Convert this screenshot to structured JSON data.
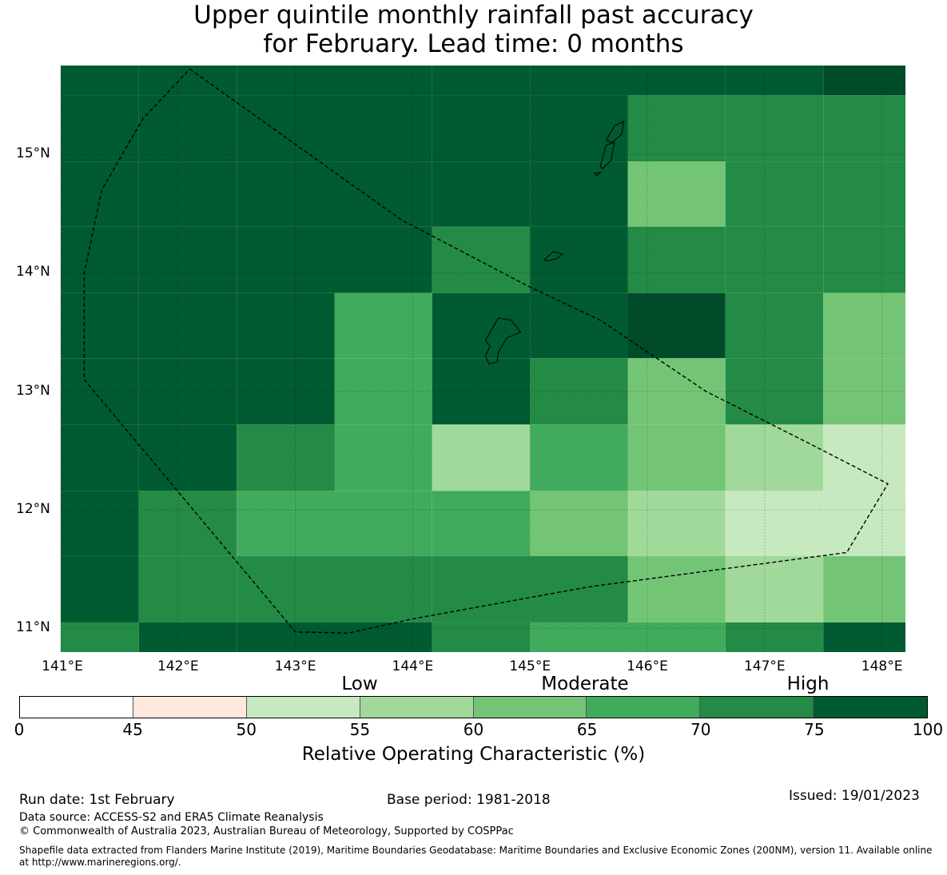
{
  "title": {
    "line1": "Upper quintile monthly rainfall past accuracy",
    "line2": "for February. Lead time: 0 months"
  },
  "map": {
    "lon_range": [
      141.0,
      148.2
    ],
    "lat_range": [
      10.8,
      15.75
    ],
    "x_ticks": [
      {
        "lon": 141,
        "label": "141°E"
      },
      {
        "lon": 142,
        "label": "142°E"
      },
      {
        "lon": 143,
        "label": "143°E"
      },
      {
        "lon": 144,
        "label": "144°E"
      },
      {
        "lon": 145,
        "label": "145°E"
      },
      {
        "lon": 146,
        "label": "146°E"
      },
      {
        "lon": 147,
        "label": "147°E"
      },
      {
        "lon": 148,
        "label": "148°E"
      }
    ],
    "y_ticks": [
      {
        "lat": 15,
        "label": "15°N"
      },
      {
        "lat": 14,
        "label": "14°N"
      },
      {
        "lat": 13,
        "label": "13°N"
      },
      {
        "lat": 12,
        "label": "12°N"
      },
      {
        "lat": 11,
        "label": "11°N"
      }
    ],
    "grid_lon_edges": [
      140.8,
      141.666,
      142.5,
      143.333,
      144.166,
      145.0,
      145.833,
      146.666,
      147.5,
      148.333
    ],
    "grid_lat_edges": [
      15.5,
      14.94,
      14.39,
      13.83,
      13.28,
      12.72,
      12.16,
      11.61,
      11.05,
      10.5
    ],
    "grid_values": [
      [
        80,
        80,
        80,
        80,
        80,
        80,
        72,
        72,
        72
      ],
      [
        80,
        80,
        80,
        80,
        80,
        80,
        62,
        72,
        72
      ],
      [
        80,
        80,
        80,
        80,
        72,
        80,
        72,
        72,
        72
      ],
      [
        80,
        80,
        80,
        67,
        80,
        80,
        82,
        72,
        62
      ],
      [
        80,
        80,
        80,
        67,
        80,
        72,
        62,
        72,
        62
      ],
      [
        80,
        80,
        72,
        67,
        57,
        67,
        62,
        57,
        52
      ],
      [
        80,
        72,
        67,
        67,
        67,
        62,
        57,
        52,
        52
      ],
      [
        80,
        72,
        72,
        72,
        72,
        72,
        62,
        57,
        62
      ],
      [
        72,
        80,
        80,
        80,
        72,
        67,
        67,
        72,
        80
      ]
    ],
    "top_strip_values": [
      80,
      80,
      80,
      80,
      80,
      80,
      80,
      80,
      80
    ],
    "boundary_polygon": [
      [
        142.1,
        15.72
      ],
      [
        143.9,
        14.45
      ],
      [
        145.0,
        13.88
      ],
      [
        145.6,
        13.6
      ],
      [
        146.5,
        13.0
      ],
      [
        147.4,
        12.55
      ],
      [
        148.05,
        12.22
      ],
      [
        147.7,
        11.64
      ],
      [
        145.5,
        11.35
      ],
      [
        144.0,
        11.08
      ],
      [
        143.45,
        10.96
      ],
      [
        143.0,
        10.97
      ],
      [
        141.2,
        13.1
      ],
      [
        141.2,
        14.0
      ],
      [
        141.35,
        14.7
      ],
      [
        141.7,
        15.3
      ],
      [
        142.1,
        15.72
      ]
    ],
    "islands": [
      [
        [
          144.62,
          13.43
        ],
        [
          144.73,
          13.62
        ],
        [
          144.84,
          13.6
        ],
        [
          144.92,
          13.5
        ],
        [
          144.8,
          13.45
        ],
        [
          144.73,
          13.33
        ],
        [
          144.72,
          13.25
        ],
        [
          144.65,
          13.23
        ],
        [
          144.62,
          13.3
        ],
        [
          144.66,
          13.38
        ],
        [
          144.62,
          13.43
        ]
      ],
      [
        [
          145.12,
          14.11
        ],
        [
          145.2,
          14.18
        ],
        [
          145.28,
          14.16
        ],
        [
          145.23,
          14.12
        ],
        [
          145.14,
          14.1
        ],
        [
          145.12,
          14.11
        ]
      ],
      [
        [
          145.6,
          14.9
        ],
        [
          145.65,
          15.08
        ],
        [
          145.72,
          15.1
        ],
        [
          145.69,
          14.95
        ],
        [
          145.62,
          14.88
        ],
        [
          145.6,
          14.9
        ]
      ],
      [
        [
          145.65,
          15.12
        ],
        [
          145.72,
          15.24
        ],
        [
          145.8,
          15.28
        ],
        [
          145.78,
          15.17
        ],
        [
          145.7,
          15.1
        ],
        [
          145.65,
          15.12
        ]
      ],
      [
        [
          145.55,
          14.84
        ],
        [
          145.6,
          14.85
        ],
        [
          145.57,
          14.82
        ],
        [
          145.55,
          14.84
        ]
      ]
    ]
  },
  "categories": {
    "low": "Low",
    "moderate": "Moderate",
    "high": "High"
  },
  "colorbar": {
    "boundaries": [
      0,
      45,
      50,
      55,
      60,
      65,
      70,
      75,
      100
    ],
    "tick_labels": [
      "0",
      "45",
      "50",
      "55",
      "60",
      "65",
      "70",
      "75",
      "100"
    ],
    "colors": [
      "#ffffff",
      "#fee8de",
      "#c7e9c0",
      "#a1d99b",
      "#74c476",
      "#41ab5d",
      "#238b45",
      "#005a32"
    ],
    "label": "Relative Operating Characteristic (%)"
  },
  "footer": {
    "run_date": "Run date: 1st February",
    "base_period": "Base period: 1981-2018",
    "issued": "Issued: 19/01/2023",
    "data_source": "Data source: ACCESS-S2 and ERA5 Climate Reanalysis",
    "copyright": "© Commonwealth of Australia 2023, Australian Bureau of Meteorology, Supported by COSPPac",
    "shapefile": "Shapefile data extracted from Flanders Marine Institute (2019), Maritime Boundaries Geodatabase: Maritime Boundaries and Exclusive Economic Zones (200NM), version 11. Available online at http://www.marineregions.org/."
  }
}
